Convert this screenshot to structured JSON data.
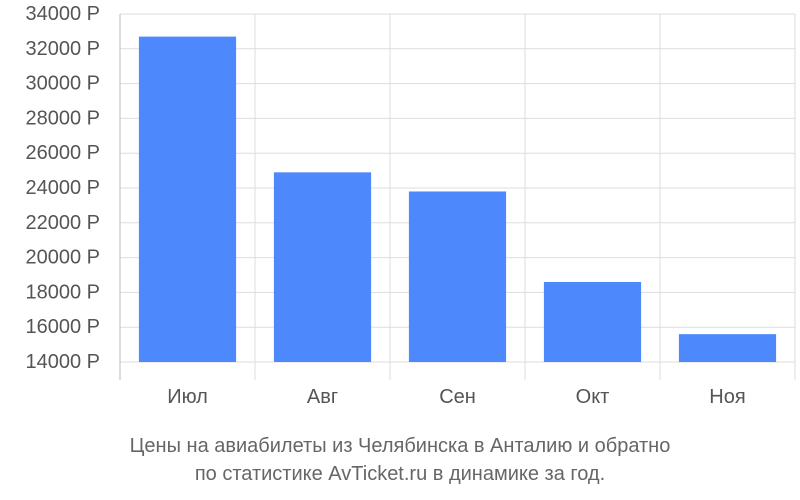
{
  "chart_data": {
    "type": "bar",
    "categories": [
      "Июл",
      "Авг",
      "Сен",
      "Окт",
      "Ноя"
    ],
    "values": [
      32700,
      24900,
      23800,
      18600,
      15600
    ],
    "y_ticks": [
      14000,
      16000,
      18000,
      20000,
      22000,
      24000,
      26000,
      28000,
      30000,
      32000,
      34000
    ],
    "y_unit": "Р",
    "ylim": [
      14000,
      34000
    ],
    "grid": true,
    "bar_color": "#4d88fc",
    "grid_color": "#dddddd",
    "caption_line1": "Цены на авиабилеты из Челябинска в Анталию и обратно",
    "caption_line2": "по статистике AvTicket.ru в динамике за год."
  }
}
